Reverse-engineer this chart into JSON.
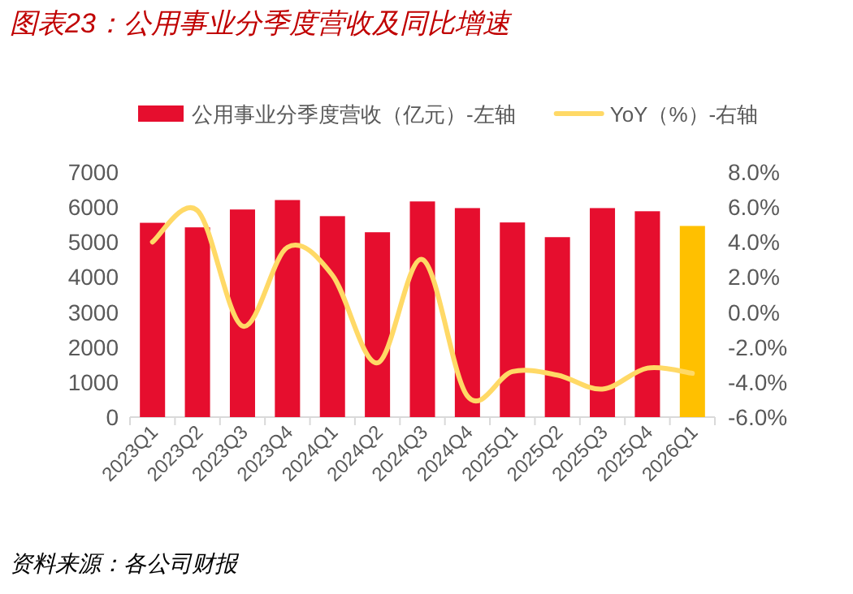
{
  "chart_data": {
    "type": "bar",
    "title": "图表23：公用事业分季度营收及同比增速",
    "categories": [
      "2023Q1",
      "2023Q2",
      "2023Q3",
      "2023Q4",
      "2024Q1",
      "2024Q2",
      "2024Q3",
      "2024Q4",
      "2025Q1",
      "2025Q2",
      "2025Q3",
      "2025Q4",
      "2026Q1"
    ],
    "series": [
      {
        "name": "公用事业分季度营收（亿元）-左轴",
        "color": "#e60e2e",
        "colors": [
          "#e60e2e",
          "#e60e2e",
          "#e60e2e",
          "#e60e2e",
          "#e60e2e",
          "#e60e2e",
          "#e60e2e",
          "#e60e2e",
          "#e60e2e",
          "#e60e2e",
          "#e60e2e",
          "#e60e2e",
          "#ffc000"
        ],
        "values": [
          5550,
          5420,
          5930,
          6200,
          5740,
          5280,
          6160,
          5970,
          5560,
          5140,
          5970,
          5880,
          5460
        ]
      },
      {
        "name": "YoY（%）-右轴",
        "type": "line",
        "axis": "y2",
        "color": "#ffd966",
        "values": [
          4.0,
          5.8,
          -0.8,
          3.7,
          2.1,
          -2.9,
          3.0,
          -4.8,
          -3.4,
          -3.6,
          -4.4,
          -3.2,
          -3.5
        ]
      }
    ],
    "ylim": [
      0,
      7000
    ],
    "yticks": [
      0,
      1000,
      2000,
      3000,
      4000,
      5000,
      6000,
      7000
    ],
    "y2lim": [
      -6,
      8
    ],
    "y2ticks": [
      {
        "value": -6,
        "label": "-6.0%"
      },
      {
        "value": -4,
        "label": "-4.0%"
      },
      {
        "value": -2,
        "label": "-2.0%"
      },
      {
        "value": 0,
        "label": "0.0%"
      },
      {
        "value": 2,
        "label": "2.0%"
      },
      {
        "value": 4,
        "label": "4.0%"
      },
      {
        "value": 6,
        "label": "6.0%"
      },
      {
        "value": 8,
        "label": "8.0%"
      }
    ],
    "legend": "top",
    "annotations": [
      "资料来源：各公司财报"
    ]
  }
}
